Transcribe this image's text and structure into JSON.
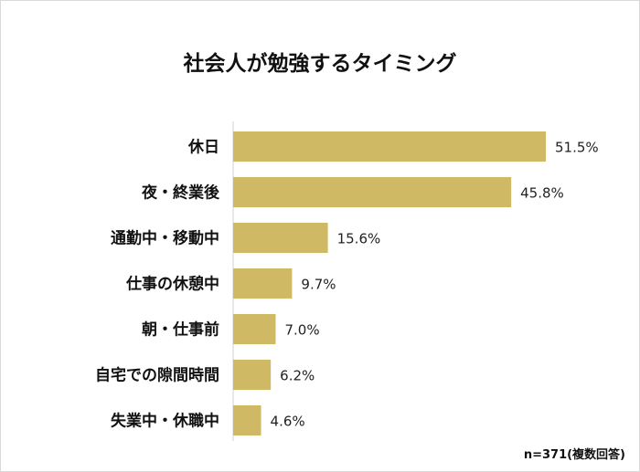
{
  "chart_data": {
    "type": "bar",
    "orientation": "horizontal",
    "title": "社会人が勉強するタイミング",
    "categories": [
      "休日",
      "夜・終業後",
      "通勤中・移動中",
      "仕事の休憩中",
      "朝・仕事前",
      "自宅での隙間時間",
      "失業中・休職中"
    ],
    "values": [
      51.5,
      45.8,
      15.6,
      9.7,
      7.0,
      6.2,
      4.6
    ],
    "value_labels": [
      "51.5%",
      "45.8%",
      "15.6%",
      "9.7%",
      "7.0%",
      "6.2%",
      "4.6%"
    ],
    "unit": "%",
    "xlim": [
      0,
      60
    ],
    "grid": false,
    "legend": "none",
    "bar_color": "#cfb964",
    "axis_color": "#d0d0d0",
    "note": "n=371(複数回答)"
  }
}
